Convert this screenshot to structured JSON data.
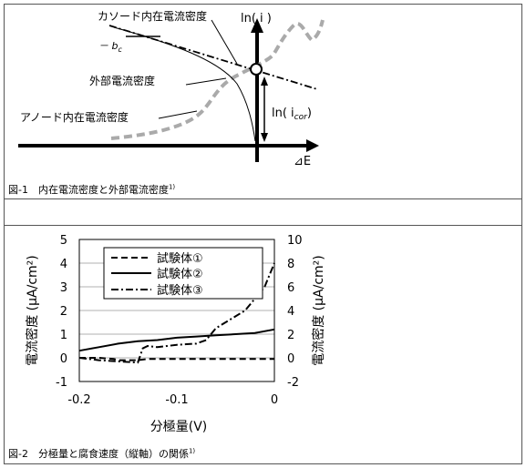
{
  "figure1": {
    "caption": "図-1　内在電流密度と外部電流密度",
    "caption_ref": "1)",
    "labels": {
      "cathode": "カソード内在電流密度",
      "bc": "－ b",
      "bc_sub": "c",
      "external": "外部電流密度",
      "anode": "アノード内在電流密度",
      "ln_i": "ln( i )",
      "ln_icor": "ln( i",
      "ln_icor_sub": "cor",
      "ln_icor_close": ")",
      "delta_e": "⊿E"
    }
  },
  "figure2": {
    "caption": "図-2　分極量と腐食速度（縦軸）の関係",
    "caption_ref": "1)",
    "chart_data": {
      "type": "line",
      "xlabel": "分極量(V)",
      "ylabel_left": "電流密度 (μA/cm²)",
      "ylabel_right": "電流密度 (μA/cm²)",
      "xlim": [
        -0.2,
        0
      ],
      "ylim_left": [
        -1,
        5
      ],
      "ylim_right": [
        -2,
        10
      ],
      "x_ticks": [
        "-0.2",
        "-0.1",
        "0"
      ],
      "y_ticks_left": [
        "-1",
        "0",
        "1",
        "2",
        "3",
        "4",
        "5"
      ],
      "y_ticks_right": [
        "-2",
        "0",
        "2",
        "4",
        "6",
        "8",
        "10"
      ],
      "grid": true,
      "legend_position": "top-left",
      "series": [
        {
          "name": "試験体①",
          "style": "dashed",
          "axis": "left",
          "x": [
            -0.2,
            -0.18,
            -0.165,
            -0.16,
            -0.15,
            -0.14,
            -0.13,
            -0.1,
            -0.08,
            -0.06,
            -0.04,
            -0.02,
            0
          ],
          "y": [
            0.0,
            0.0,
            -0.05,
            -0.1,
            -0.1,
            -0.1,
            -0.05,
            -0.05,
            -0.05,
            -0.05,
            -0.05,
            -0.05,
            -0.05
          ]
        },
        {
          "name": "試験体②",
          "style": "solid",
          "axis": "left",
          "x": [
            -0.2,
            -0.18,
            -0.16,
            -0.14,
            -0.12,
            -0.1,
            -0.08,
            -0.06,
            -0.04,
            -0.02,
            0
          ],
          "y": [
            0.3,
            0.45,
            0.6,
            0.7,
            0.75,
            0.85,
            0.9,
            0.95,
            1.0,
            1.05,
            1.2
          ]
        },
        {
          "name": "試験体③",
          "style": "dashdot",
          "axis": "right",
          "x": [
            -0.2,
            -0.18,
            -0.16,
            -0.14,
            -0.135,
            -0.13,
            -0.12,
            -0.11,
            -0.1,
            -0.08,
            -0.07,
            -0.06,
            -0.05,
            -0.04,
            -0.03,
            -0.02,
            -0.01,
            0
          ],
          "y": [
            0.0,
            -0.2,
            -0.3,
            -0.4,
            0.8,
            1.0,
            0.9,
            1.0,
            1.1,
            1.2,
            1.5,
            2.5,
            3.0,
            3.5,
            4.0,
            5.0,
            6.0,
            8.0
          ]
        }
      ]
    }
  }
}
